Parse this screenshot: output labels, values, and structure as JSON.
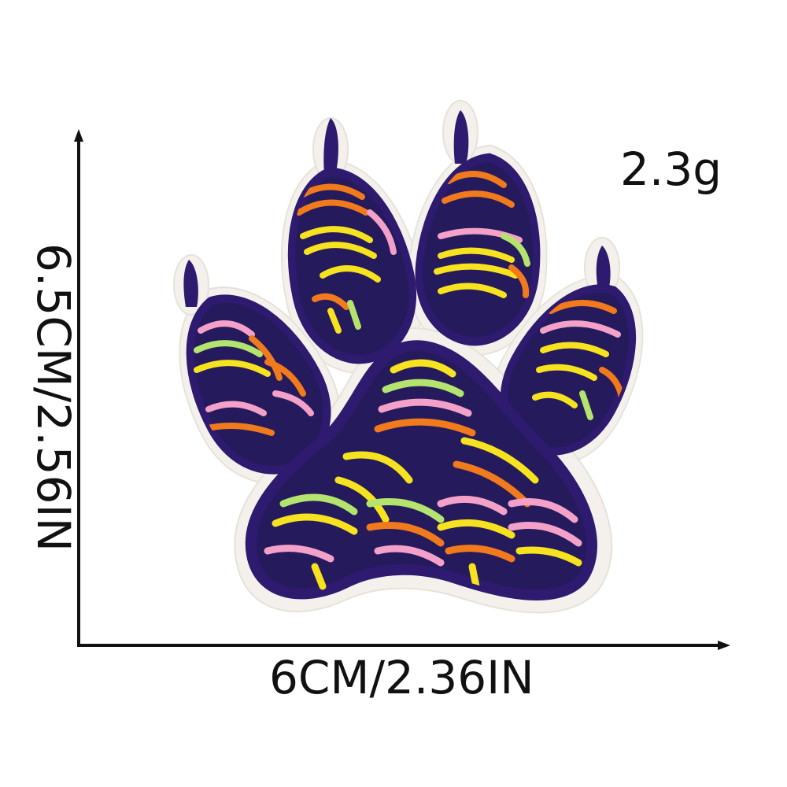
{
  "product": {
    "weight": "2.3g",
    "width_dimension": "6CM/2.36IN",
    "height_dimension": "6.5CM/2.56IN"
  },
  "colors": {
    "background": "#ffffff",
    "patch_backing": "#f4f1ec",
    "outline": "#2e1a6e",
    "fill": "#241a5c",
    "stitch_colors": [
      "#f7e21f",
      "#f07a1c",
      "#f3a1c8",
      "#b4e36e",
      "#f0c21a"
    ],
    "text": "#111111"
  }
}
